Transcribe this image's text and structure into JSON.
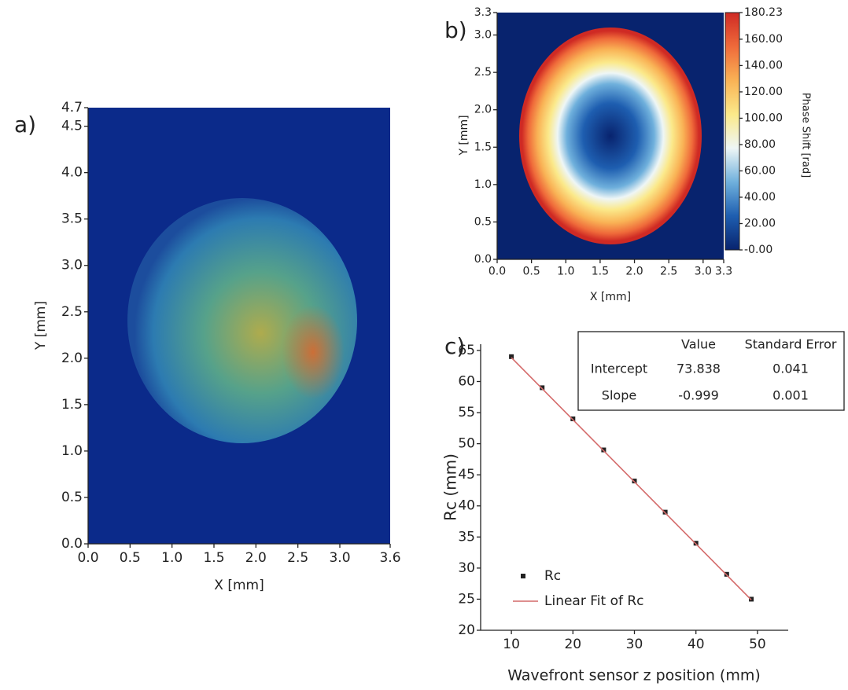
{
  "chart_data": [
    {
      "type": "heatmap",
      "panel_label": "a)",
      "x_label": "X [mm]",
      "y_label": "Y [mm]",
      "xlim": [
        0,
        3.6
      ],
      "ylim": [
        0,
        4.7
      ],
      "xticks": [
        {
          "value": 0,
          "label": "0.0"
        },
        0.5,
        {
          "value": 1,
          "label": "1.0"
        },
        1.5,
        {
          "value": 2,
          "label": "2.0"
        },
        2.5,
        {
          "value": 3,
          "label": "3.0"
        },
        3.6
      ],
      "yticks": [
        {
          "value": 0,
          "label": "0.0"
        },
        0.5,
        {
          "value": 1,
          "label": "1.0"
        },
        1.5,
        {
          "value": 2,
          "label": "2.0"
        },
        2.5,
        {
          "value": 3,
          "label": "3.0"
        },
        3.5,
        {
          "value": 4,
          "label": "4.0"
        },
        4.5,
        4.7
      ]
    },
    {
      "type": "heatmap",
      "panel_label": "b)",
      "x_label": "X [mm]",
      "y_label": "Y [mm]",
      "xlim": [
        0,
        3.3
      ],
      "ylim": [
        0,
        3.3
      ],
      "xticks": [
        {
          "value": 0,
          "label": "0.0"
        },
        0.5,
        {
          "value": 1,
          "label": "1.0"
        },
        1.5,
        {
          "value": 2,
          "label": "2.0"
        },
        2.5,
        {
          "value": 3,
          "label": "3.0"
        },
        3.3
      ],
      "yticks": [
        {
          "value": 0,
          "label": "0.0"
        },
        0.5,
        {
          "value": 1,
          "label": "1.0"
        },
        1.5,
        {
          "value": 2,
          "label": "2.0"
        },
        2.5,
        {
          "value": 3,
          "label": "3.0"
        },
        3.3
      ],
      "colorbar_label": "Phase Shift [rad]",
      "clim": [
        0,
        180.23
      ],
      "cticks": [
        {
          "value": 0,
          "label": "-0.00"
        },
        {
          "value": 20,
          "label": "20.00"
        },
        {
          "value": 40,
          "label": "40.00"
        },
        {
          "value": 60,
          "label": "60.00"
        },
        {
          "value": 80,
          "label": "80.00"
        },
        {
          "value": 100,
          "label": "100.00"
        },
        {
          "value": 120,
          "label": "120.00"
        },
        {
          "value": 140,
          "label": "140.00"
        },
        {
          "value": 160,
          "label": "160.00"
        },
        180.23
      ],
      "colormap": [
        "#08236e",
        "#1e5eb0",
        "#6fb0dc",
        "#eef6f6",
        "#fbe98a",
        "#f9b255",
        "#ef6a3a",
        "#cf2a24"
      ]
    },
    {
      "type": "scatter",
      "panel_label": "c)",
      "x_label": "Wavefront sensor z position (mm)",
      "y_label": "Rc (mm)",
      "xlim": [
        5,
        55
      ],
      "ylim": [
        20,
        66
      ],
      "xticks": [
        10,
        20,
        30,
        40,
        50
      ],
      "yticks": [
        20,
        25,
        30,
        35,
        40,
        45,
        50,
        55,
        60,
        65
      ],
      "series": [
        {
          "name": "Rc",
          "color": "#222222",
          "x": [
            10,
            15,
            20,
            25,
            30,
            35,
            40,
            45,
            49
          ],
          "values": [
            64,
            59,
            54,
            49,
            44,
            39,
            34,
            29,
            25
          ]
        },
        {
          "name": "Linear Fit of Rc",
          "color": "#d46a6a",
          "x": [
            10,
            49
          ],
          "values": [
            63.848,
            24.887
          ]
        }
      ],
      "fit_table": {
        "columns": [
          "Value",
          "Standard Error"
        ],
        "rows": [
          {
            "label": "Intercept",
            "cells": [
              "73.838",
              "0.041"
            ]
          },
          {
            "label": "Slope",
            "cells": [
              "-0.999",
              "0.001"
            ]
          }
        ]
      }
    }
  ]
}
